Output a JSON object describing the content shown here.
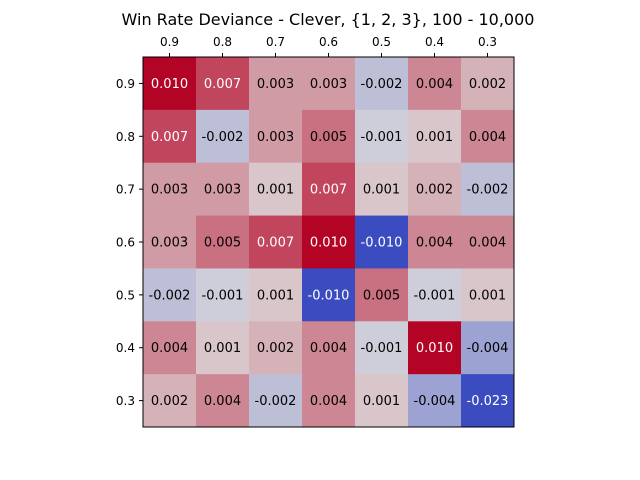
{
  "chart_data": {
    "type": "heatmap",
    "title": "Win Rate Deviance - Clever, {1, 2, 3}, 100 - 10,000",
    "x_tick_labels": [
      "0.9",
      "0.8",
      "0.7",
      "0.6",
      "0.5",
      "0.4",
      "0.3"
    ],
    "y_tick_labels": [
      "0.9",
      "0.8",
      "0.7",
      "0.6",
      "0.5",
      "0.4",
      "0.3"
    ],
    "x_axis_position": "top",
    "colormap": "coolwarm",
    "colormap_stops": [
      "#3b4cc0",
      "#dddcdc",
      "#b40426"
    ],
    "color_range": [
      -0.01,
      0.01
    ],
    "grid": false,
    "values": [
      [
        0.01,
        0.007,
        0.003,
        0.003,
        -0.002,
        0.004,
        0.002
      ],
      [
        0.007,
        -0.002,
        0.003,
        0.005,
        -0.001,
        0.001,
        0.004
      ],
      [
        0.003,
        0.003,
        0.001,
        0.007,
        0.001,
        0.002,
        -0.002
      ],
      [
        0.003,
        0.005,
        0.007,
        0.01,
        -0.01,
        0.004,
        0.004
      ],
      [
        -0.002,
        -0.001,
        0.001,
        -0.01,
        0.005,
        -0.001,
        0.001
      ],
      [
        0.004,
        0.001,
        0.002,
        0.004,
        -0.001,
        0.01,
        -0.004
      ],
      [
        0.002,
        0.004,
        -0.002,
        0.004,
        0.001,
        -0.004,
        -0.023
      ]
    ],
    "cell_labels": [
      [
        "0.010",
        "0.007",
        "0.003",
        "0.003",
        "-0.002",
        "0.004",
        "0.002"
      ],
      [
        "0.007",
        "-0.002",
        "0.003",
        "0.005",
        "-0.001",
        "0.001",
        "0.004"
      ],
      [
        "0.003",
        "0.003",
        "0.001",
        "0.007",
        "0.001",
        "0.002",
        "-0.002"
      ],
      [
        "0.003",
        "0.005",
        "0.007",
        "0.010",
        "-0.010",
        "0.004",
        "0.004"
      ],
      [
        "-0.002",
        "-0.001",
        "0.001",
        "-0.010",
        "0.005",
        "-0.001",
        "0.001"
      ],
      [
        "0.004",
        "0.001",
        "0.002",
        "0.004",
        "-0.001",
        "0.010",
        "-0.004"
      ],
      [
        "0.002",
        "0.004",
        "-0.002",
        "0.004",
        "0.001",
        "-0.004",
        "-0.023"
      ]
    ]
  }
}
